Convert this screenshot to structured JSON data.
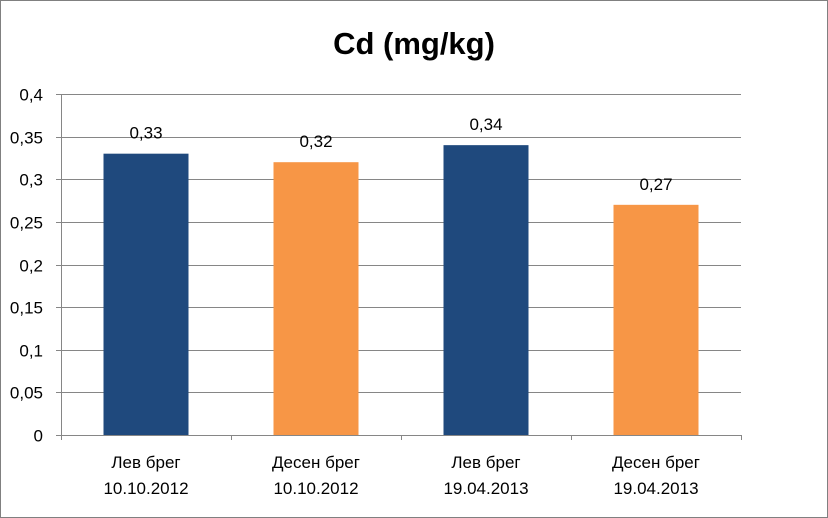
{
  "chart_data": {
    "type": "bar",
    "title": "Cd (mg/kg)",
    "categories": [
      [
        "Лев брег",
        "10.10.2012"
      ],
      [
        "Десен брег",
        "10.10.2012"
      ],
      [
        "Лев брег",
        "19.04.2013"
      ],
      [
        "Десен брег",
        "19.04.2013"
      ]
    ],
    "values": [
      0.33,
      0.32,
      0.34,
      0.27
    ],
    "data_labels": [
      "0,33",
      "0,32",
      "0,34",
      "0,27"
    ],
    "bar_colors": [
      "#1f497d",
      "#f79646",
      "#1f497d",
      "#f79646"
    ],
    "ylim": [
      0,
      0.4
    ],
    "y_ticks": [
      0,
      0.05,
      0.1,
      0.15,
      0.2,
      0.25,
      0.3,
      0.35,
      0.4
    ],
    "y_tick_labels": [
      "0",
      "0,05",
      "0,1",
      "0,15",
      "0,2",
      "0,25",
      "0,3",
      "0,35",
      "0,4"
    ],
    "grid": true,
    "legend": "none"
  }
}
